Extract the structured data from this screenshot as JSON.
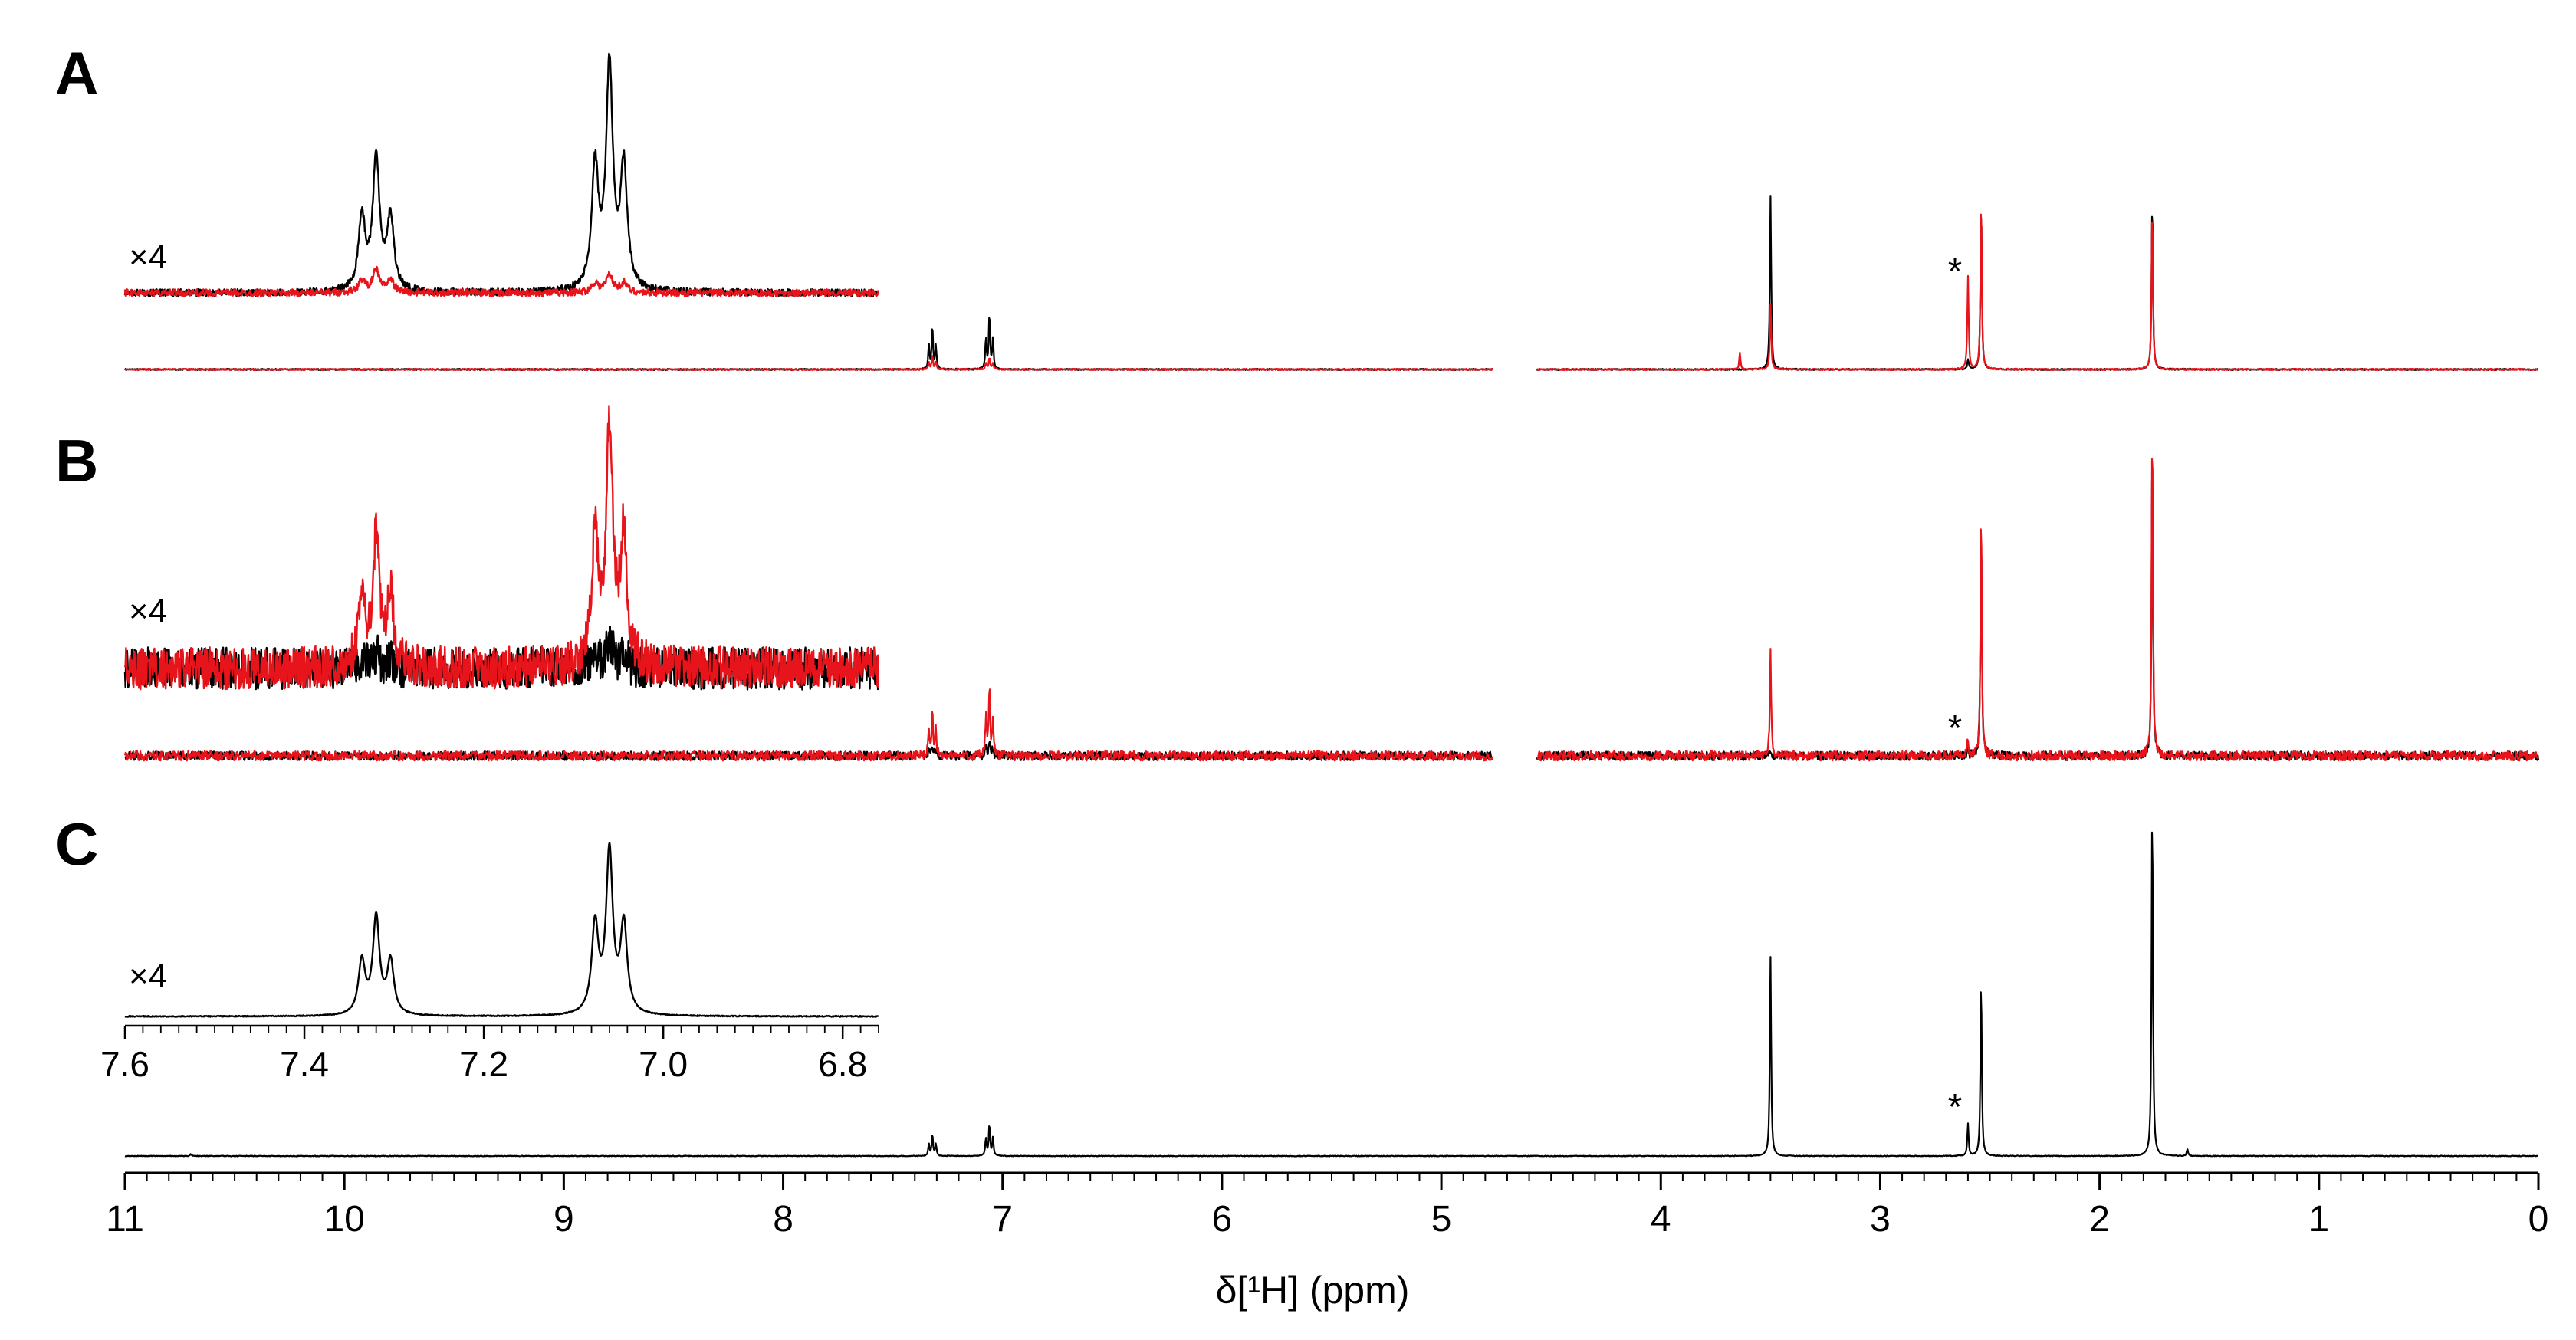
{
  "chart_data": {
    "type": "line",
    "xlabel": "δ[¹H] (ppm)",
    "x_axis": {
      "range": [
        11,
        0
      ],
      "reversed": true,
      "ticks": [
        "11",
        "10",
        "9",
        "8",
        "7",
        "6",
        "5",
        "4",
        "3",
        "2",
        "1",
        "0"
      ],
      "break": [
        4.8,
        4.6
      ]
    },
    "colors": {
      "black": "#000000",
      "red": "#e8141b"
    },
    "panels": [
      {
        "label": "A",
        "series_colors": [
          "black",
          "red"
        ],
        "peaks": [
          {
            "ppm": 7.32,
            "black": 0.25,
            "red": 0.08,
            "split": "triplet"
          },
          {
            "ppm": 7.06,
            "black": 0.32,
            "red": 0.07,
            "split": "triplet"
          },
          {
            "ppm": 3.5,
            "black": 1.0,
            "red": 0.38
          },
          {
            "ppm": 2.6,
            "black": 0.06,
            "red": 0.54,
            "note": "*"
          },
          {
            "ppm": 2.54,
            "black": 1.0,
            "red": 1.0
          },
          {
            "ppm": 1.76,
            "black": 1.0,
            "red": 0.96
          },
          {
            "ppm": 3.64,
            "black": 0.0,
            "red": 0.1
          }
        ],
        "noise": 0.008,
        "annotation": "*",
        "magnification": "×4",
        "inset": {
          "range": [
            7.6,
            6.76
          ],
          "black": [
            {
              "ppm": 7.32,
              "height": 0.6,
              "split": "triplet"
            },
            {
              "ppm": 7.06,
              "height": 1.0,
              "split": "triplet"
            }
          ],
          "red": [
            {
              "ppm": 7.32,
              "height": 0.1,
              "split": "triplet"
            },
            {
              "ppm": 7.06,
              "height": 0.08,
              "split": "triplet"
            }
          ],
          "noise": 0.02
        }
      },
      {
        "label": "B",
        "series_colors": [
          "black",
          "red"
        ],
        "peaks": [
          {
            "ppm": 7.32,
            "black": 0.03,
            "red": 0.14,
            "split": "triplet"
          },
          {
            "ppm": 7.06,
            "black": 0.04,
            "red": 0.2,
            "split": "triplet"
          },
          {
            "ppm": 3.5,
            "black": 0.02,
            "red": 0.3
          },
          {
            "ppm": 2.6,
            "black": 0.02,
            "red": 0.05,
            "note": "*"
          },
          {
            "ppm": 2.54,
            "black": 0.7,
            "red": 0.72
          },
          {
            "ppm": 1.76,
            "black": 0.9,
            "red": 0.97
          }
        ],
        "noise": 0.025,
        "annotation": "*",
        "magnification": "×4",
        "inset": {
          "range": [
            7.6,
            6.76
          ],
          "black": [
            {
              "ppm": 7.32,
              "height": 0.05,
              "split": "triplet"
            },
            {
              "ppm": 7.06,
              "height": 0.1,
              "split": "triplet"
            }
          ],
          "red": [
            {
              "ppm": 7.32,
              "height": 0.48,
              "split": "triplet"
            },
            {
              "ppm": 7.06,
              "height": 0.88,
              "split": "triplet"
            }
          ],
          "noise": 0.1
        }
      },
      {
        "label": "C",
        "series_colors": [
          "black"
        ],
        "peaks": [
          {
            "ppm": 7.32,
            "black": 0.06,
            "split": "triplet"
          },
          {
            "ppm": 7.06,
            "black": 0.09,
            "split": "triplet"
          },
          {
            "ppm": 3.5,
            "black": 0.56
          },
          {
            "ppm": 2.6,
            "black": 0.09,
            "note": "*"
          },
          {
            "ppm": 2.54,
            "black": 0.5
          },
          {
            "ppm": 1.76,
            "black": 1.0
          },
          {
            "ppm": 1.6,
            "black": 0.02
          },
          {
            "ppm": 10.7,
            "black": 0.005
          }
        ],
        "noise": 0.002,
        "annotation": "*",
        "magnification": "×4",
        "inset": {
          "range": [
            7.6,
            6.76
          ],
          "ticks": [
            "7.6",
            "7.4",
            "7.2",
            "7.0",
            "6.8"
          ],
          "black": [
            {
              "ppm": 7.32,
              "height": 0.6,
              "split": "triplet"
            },
            {
              "ppm": 7.06,
              "height": 1.0,
              "split": "triplet"
            }
          ],
          "noise": 0.004
        }
      }
    ]
  }
}
